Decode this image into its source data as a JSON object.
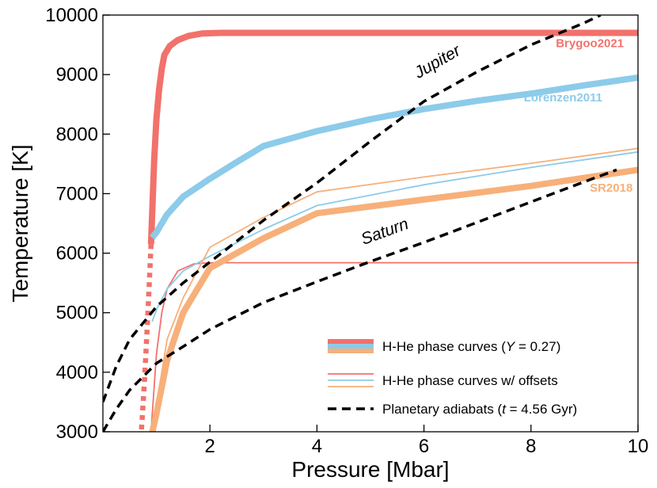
{
  "chart_data": {
    "type": "line",
    "xlabel": "Pressure [Mbar]",
    "ylabel": "Temperature [K]",
    "xlim": [
      0,
      10
    ],
    "ylim": [
      3000,
      10000
    ],
    "x_ticks": [
      2,
      4,
      6,
      8,
      10
    ],
    "y_ticks": [
      3000,
      4000,
      5000,
      6000,
      7000,
      8000,
      9000,
      10000
    ],
    "colors": {
      "brygoo": "#f2716b",
      "lorenzen": "#8ccbe9",
      "sr": "#f7b07a",
      "adiabat": "#000000"
    },
    "series": [
      {
        "name": "Brygoo2021",
        "style": "thick",
        "color_key": "brygoo",
        "x": [
          0.9,
          0.93,
          0.96,
          1.0,
          1.05,
          1.1,
          1.15,
          1.25,
          1.4,
          1.6,
          1.85,
          2.2,
          10
        ],
        "y": [
          6150,
          6900,
          7600,
          8250,
          8750,
          9100,
          9330,
          9480,
          9580,
          9650,
          9690,
          9700,
          9700
        ]
      },
      {
        "name": "Brygoo2021 extrapolation",
        "style": "dotted",
        "color_key": "brygoo",
        "x": [
          0.9,
          0.86,
          0.82,
          0.78,
          0.74,
          0.71
        ],
        "y": [
          6150,
          5350,
          4600,
          3900,
          3300,
          2900
        ]
      },
      {
        "name": "Lorenzen2011",
        "style": "thick",
        "color_key": "lorenzen",
        "x": [
          0.92,
          1.0,
          1.2,
          1.5,
          2.0,
          2.5,
          3.0,
          4.0,
          5.0,
          6.0,
          7.0,
          8.0,
          9.0,
          10.0
        ],
        "y": [
          6260,
          6350,
          6650,
          6950,
          7250,
          7530,
          7800,
          8050,
          8250,
          8420,
          8560,
          8680,
          8820,
          8950
        ]
      },
      {
        "name": "SR2018",
        "style": "thick",
        "color_key": "sr",
        "x": [
          0.9,
          1.0,
          1.2,
          1.5,
          2.0,
          3.0,
          4.0,
          6.0,
          8.0,
          10.0
        ],
        "y": [
          2900,
          3300,
          4200,
          5000,
          5750,
          6250,
          6670,
          6900,
          7130,
          7400
        ]
      },
      {
        "name": "Brygoo2021 w/ offset",
        "style": "thin",
        "color_key": "brygoo",
        "x": [
          0.9,
          1.0,
          1.1,
          1.2,
          1.4,
          1.7,
          2.0,
          10
        ],
        "y": [
          3000,
          4300,
          5000,
          5400,
          5700,
          5820,
          5840,
          5840
        ]
      },
      {
        "name": "Lorenzen2011 w/ offset",
        "style": "thin",
        "color_key": "lorenzen",
        "x": [
          0.92,
          1.0,
          1.2,
          1.5,
          2.0,
          3.0,
          4.0,
          6.0,
          8.0,
          10.0
        ],
        "y": [
          4850,
          5050,
          5400,
          5700,
          5950,
          6400,
          6800,
          7150,
          7440,
          7700
        ]
      },
      {
        "name": "SR2018 w/ offset",
        "style": "thin",
        "color_key": "sr",
        "x": [
          0.9,
          1.0,
          1.2,
          1.5,
          2.0,
          3.0,
          4.0,
          6.0,
          8.0,
          10.0
        ],
        "y": [
          2950,
          3450,
          4550,
          5250,
          6100,
          6600,
          7030,
          7280,
          7510,
          7760
        ]
      },
      {
        "name": "Jupiter adiabat",
        "style": "dashed",
        "color_key": "adiabat",
        "x": [
          0.0,
          0.25,
          0.5,
          1.0,
          1.5,
          2.0,
          3.0,
          4.0,
          5.0,
          6.0,
          7.0,
          8.0,
          9.0,
          9.3
        ],
        "y": [
          3500,
          4100,
          4550,
          5100,
          5500,
          5850,
          6550,
          7180,
          7880,
          8550,
          9050,
          9500,
          9870,
          10000
        ]
      },
      {
        "name": "Saturn adiabat",
        "style": "dashed",
        "color_key": "adiabat",
        "x": [
          0.0,
          0.25,
          0.5,
          1.0,
          1.5,
          2.0,
          3.0,
          4.0,
          5.0,
          6.0,
          7.0,
          8.0,
          9.0,
          9.6
        ],
        "y": [
          3000,
          3380,
          3700,
          4150,
          4430,
          4720,
          5170,
          5520,
          5860,
          6180,
          6520,
          6860,
          7200,
          7400
        ]
      }
    ],
    "curve_labels": [
      {
        "text": "Brygoo2021",
        "x": 9.1,
        "y": 9460,
        "color_key": "brygoo"
      },
      {
        "text": "Lorenzen2011",
        "x": 8.6,
        "y": 8550,
        "color_key": "lorenzen"
      },
      {
        "text": "SR2018",
        "x": 9.5,
        "y": 7030,
        "color_key": "sr"
      }
    ],
    "planet_labels": [
      {
        "text": "Jupiter",
        "x": 6.3,
        "y": 9140,
        "angle": -30
      },
      {
        "text": "Saturn",
        "x": 5.3,
        "y": 6280,
        "angle": -20
      }
    ],
    "legend": {
      "position": "lower-right",
      "entries": [
        {
          "label_parts": [
            "H-He phase curves (",
            "Y",
            " = 0.27)"
          ],
          "style": "thick"
        },
        {
          "label_parts": [
            "H-He phase curves w/ offsets",
            "",
            ""
          ],
          "style": "thin"
        },
        {
          "label_parts": [
            "Planetary adiabats (",
            "t",
            " = 4.56 Gyr)"
          ],
          "style": "dashed"
        }
      ]
    }
  }
}
